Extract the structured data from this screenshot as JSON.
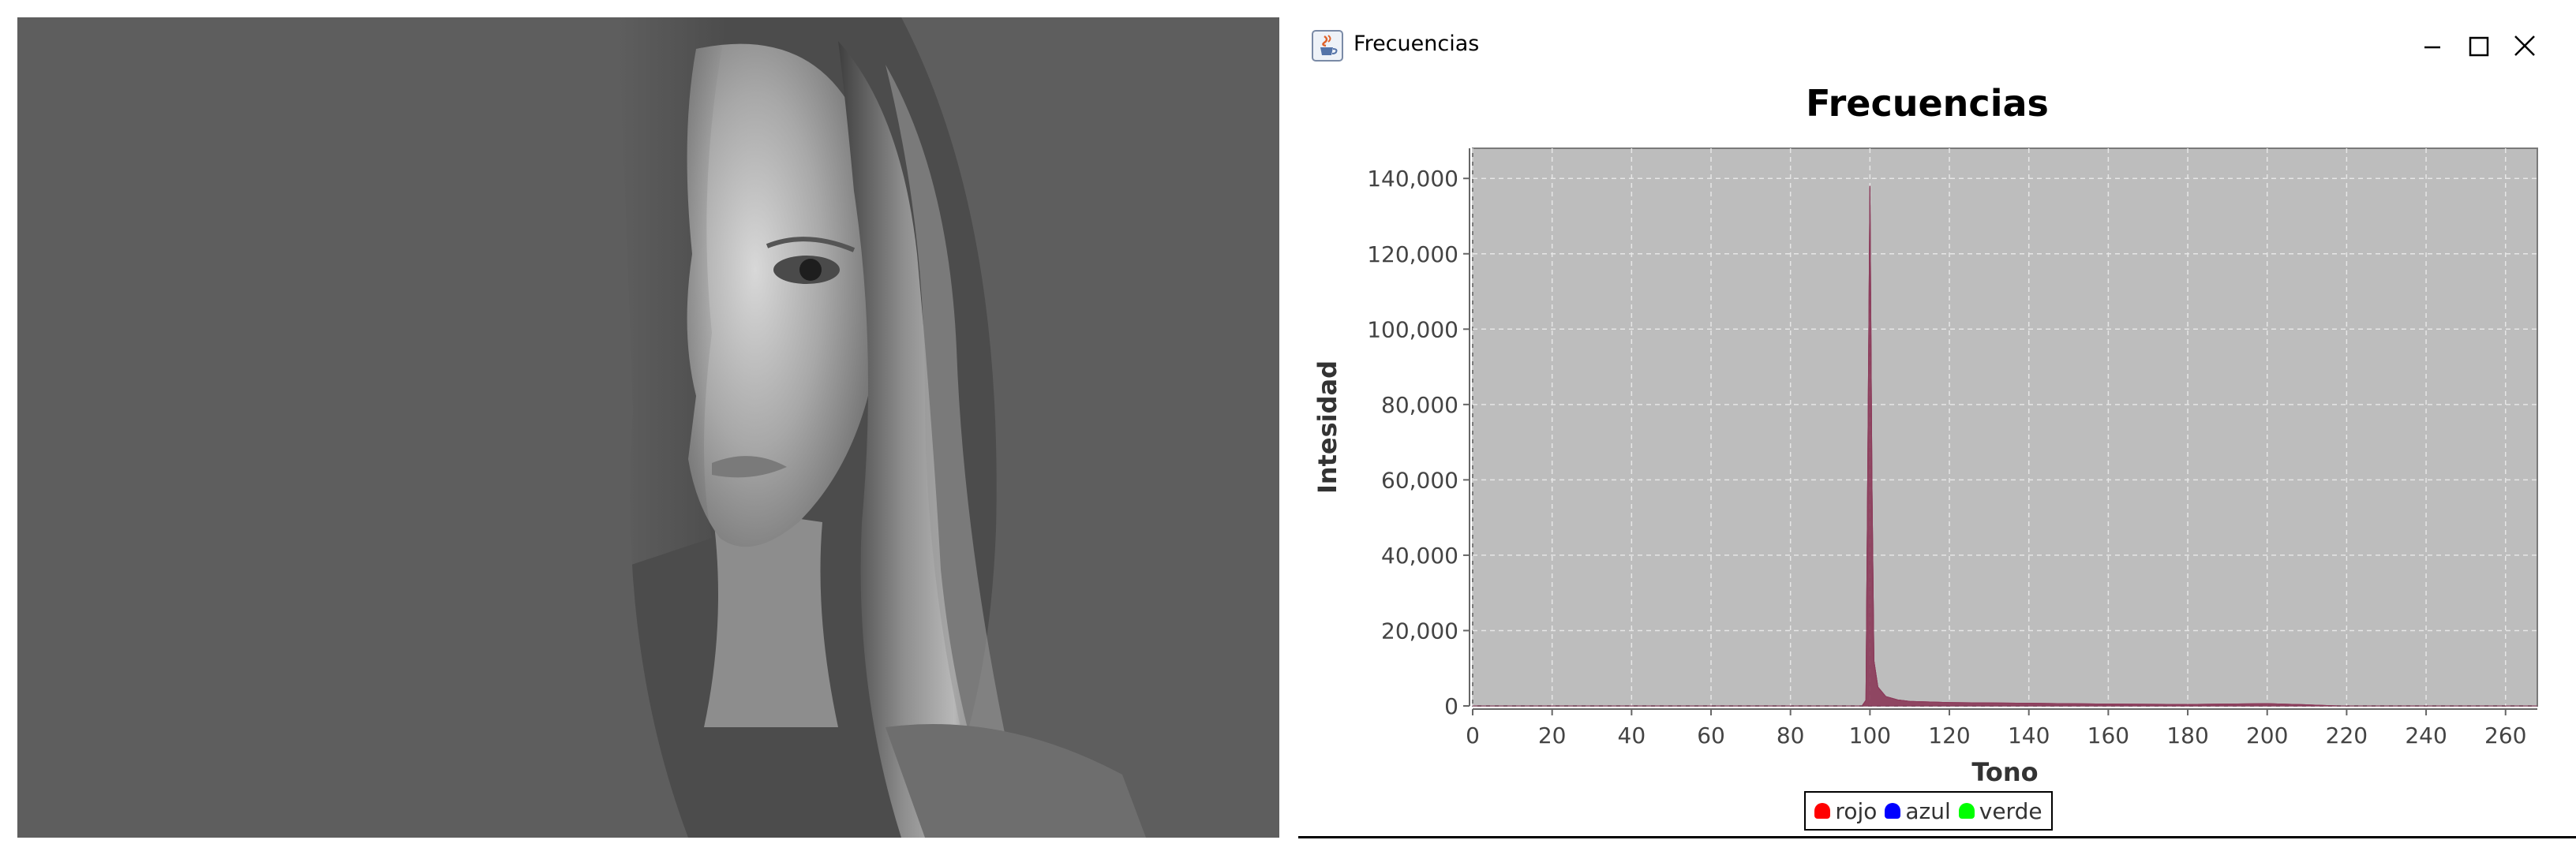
{
  "window": {
    "title": "Frecuencias",
    "buttons": [
      "minimize",
      "maximize",
      "close"
    ],
    "icon": "java-cup-icon"
  },
  "chart_data": {
    "type": "area",
    "title": "Frecuencias",
    "xlabel": "Tono",
    "ylabel": "Intesidad",
    "xlim": [
      0,
      268
    ],
    "ylim": [
      0,
      148000
    ],
    "xticks": [
      0,
      20,
      40,
      60,
      80,
      100,
      120,
      140,
      160,
      180,
      200,
      220,
      240,
      260
    ],
    "yticks": [
      0,
      20000,
      40000,
      60000,
      80000,
      100000,
      120000,
      140000
    ],
    "ytick_labels": [
      "0",
      "20,000",
      "40,000",
      "60,000",
      "80,000",
      "100,000",
      "120,000",
      "140,000"
    ],
    "grid": true,
    "legend_position": "bottom-center",
    "plot_background": "#bdbdbd",
    "series": [
      {
        "name": "rojo",
        "color": "#ff0000",
        "x": [
          0,
          98,
          99,
          100,
          100.5,
          101,
          102,
          104,
          107,
          110,
          120,
          140,
          160,
          180,
          190,
          200,
          210,
          215,
          218,
          260,
          268
        ],
        "y": [
          0,
          0,
          1500,
          138000,
          60000,
          12000,
          5000,
          2500,
          1600,
          1200,
          900,
          700,
          500,
          400,
          500,
          600,
          300,
          100,
          0,
          0,
          0
        ]
      },
      {
        "name": "azul",
        "color": "#0000ff",
        "x": [
          0,
          98,
          99,
          100,
          100.5,
          101,
          102,
          104,
          107,
          110,
          120,
          140,
          160,
          180,
          190,
          200,
          210,
          215,
          218,
          260,
          268
        ],
        "y": [
          0,
          0,
          1500,
          138000,
          60000,
          12000,
          5000,
          2500,
          1600,
          1200,
          900,
          700,
          500,
          400,
          500,
          600,
          300,
          100,
          0,
          0,
          0
        ]
      },
      {
        "name": "verde",
        "color": "#00ff00",
        "x": [
          0,
          98,
          99,
          100,
          100.5,
          101,
          102,
          104,
          107,
          110,
          120,
          140,
          160,
          180,
          190,
          200,
          210,
          215,
          218,
          260,
          268
        ],
        "y": [
          0,
          0,
          1500,
          138000,
          60000,
          12000,
          5000,
          2500,
          1600,
          1200,
          900,
          700,
          500,
          400,
          500,
          600,
          300,
          100,
          0,
          0,
          0
        ]
      }
    ],
    "rendered_fill": "#8b3a5a"
  },
  "colors": {
    "photo_background": "#5e5e5e",
    "fill_color": "#8b3a5a",
    "grid_color": "#e6e6e6"
  }
}
